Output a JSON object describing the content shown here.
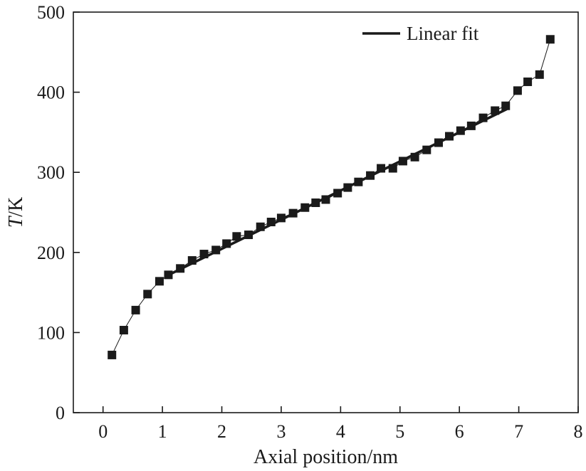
{
  "chart_data": {
    "type": "scatter",
    "xlabel": "Axial position/nm",
    "ylabel_italic": "T",
    "ylabel_rest": "/K",
    "xlim": [
      -0.5,
      8
    ],
    "ylim": [
      0,
      500
    ],
    "xticks": [
      0,
      1,
      2,
      3,
      4,
      5,
      6,
      7,
      8
    ],
    "yticks": [
      0,
      100,
      200,
      300,
      400,
      500
    ],
    "grid": false,
    "legend_position": "top-right",
    "legend_label": "Linear fit",
    "series": [
      {
        "marker": "square",
        "color": "#1a1a1a",
        "connected": true,
        "x": [
          0.15,
          0.35,
          0.55,
          0.75,
          0.95,
          1.1,
          1.3,
          1.5,
          1.7,
          1.9,
          2.08,
          2.25,
          2.45,
          2.65,
          2.83,
          3.0,
          3.2,
          3.4,
          3.58,
          3.75,
          3.95,
          4.12,
          4.3,
          4.5,
          4.68,
          4.88,
          5.05,
          5.25,
          5.45,
          5.65,
          5.83,
          6.02,
          6.2,
          6.4,
          6.6,
          6.78,
          6.98,
          7.15,
          7.35,
          7.53
        ],
        "y": [
          72,
          103,
          128,
          148,
          164,
          172,
          180,
          190,
          198,
          203,
          211,
          220,
          222,
          232,
          238,
          243,
          249,
          256,
          262,
          266,
          274,
          281,
          288,
          296,
          305,
          305,
          314,
          319,
          328,
          337,
          345,
          352,
          358,
          368,
          377,
          383,
          402,
          413,
          422,
          466
        ]
      }
    ],
    "fit_line": {
      "x": [
        1.05,
        6.8
      ],
      "y": [
        170,
        379
      ]
    }
  }
}
